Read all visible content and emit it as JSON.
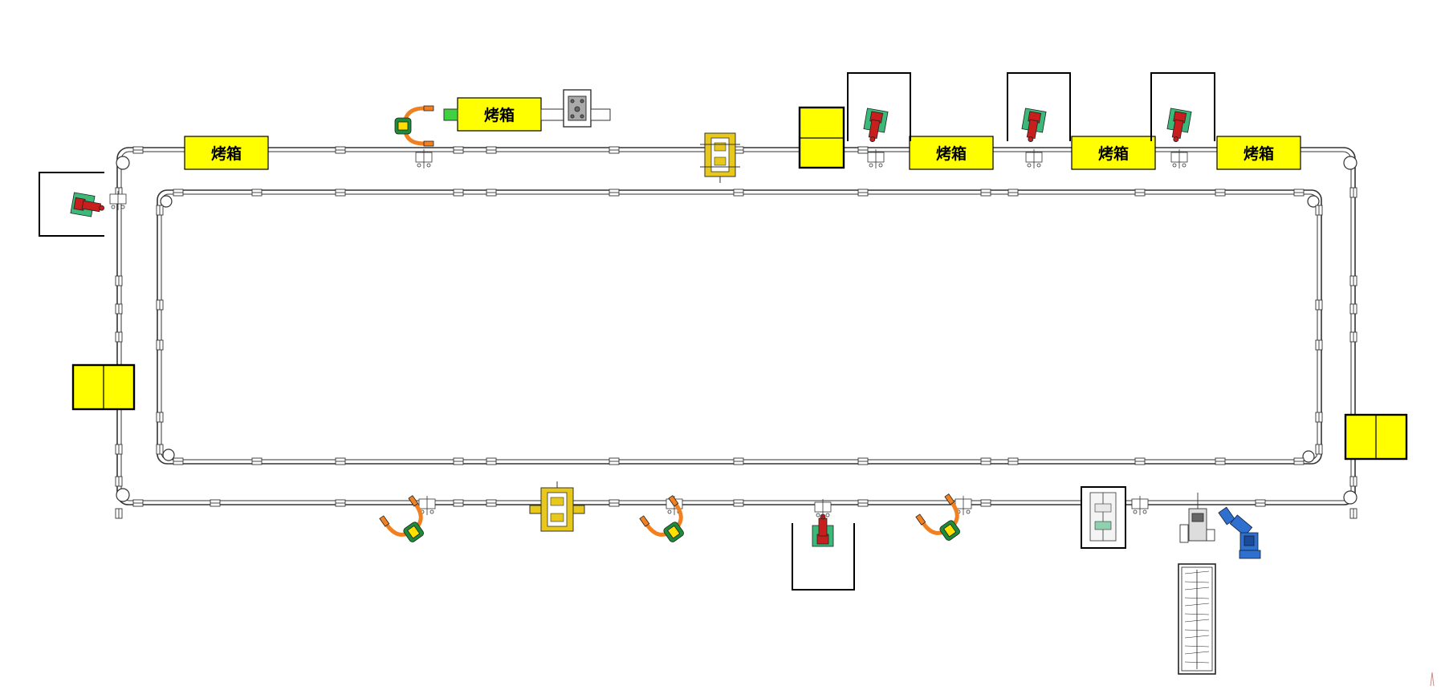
{
  "diagram": {
    "title": "",
    "colors": {
      "track": "#333333",
      "station_fill": "#ffff00",
      "robot_base": "#3cb878",
      "robot_arm": "#c81e1e",
      "feeder_green": "#1c8c3a",
      "feeder_orange": "#f08020",
      "lift_yellow": "#e8c81a",
      "blue_robot": "#2f6fcf",
      "green_conveyor": "#40d040"
    },
    "ovens": [
      {
        "id": "oven-1",
        "label": "烤箱"
      },
      {
        "id": "oven-2",
        "label": "烤箱"
      },
      {
        "id": "oven-3",
        "label": "烤箱"
      },
      {
        "id": "oven-4",
        "label": "烤箱"
      },
      {
        "id": "oven-5",
        "label": "烤箱"
      }
    ],
    "buffer_stations": [
      "buffer-top",
      "buffer-left",
      "buffer-right"
    ],
    "robot_cells": [
      "robot-cell-left",
      "robot-cell-top-1",
      "robot-cell-top-2",
      "robot-cell-top-3",
      "robot-cell-bottom"
    ],
    "feeders": [
      "feeder-top",
      "feeder-bottom-1",
      "feeder-bottom-2",
      "feeder-bottom-3"
    ],
    "lifts": [
      "lift-top",
      "lift-bottom"
    ],
    "icons": [
      "oven-icon",
      "robot-icon",
      "feeder-icon",
      "lift-icon",
      "corner-wheel-icon",
      "track-clamp-icon"
    ]
  }
}
